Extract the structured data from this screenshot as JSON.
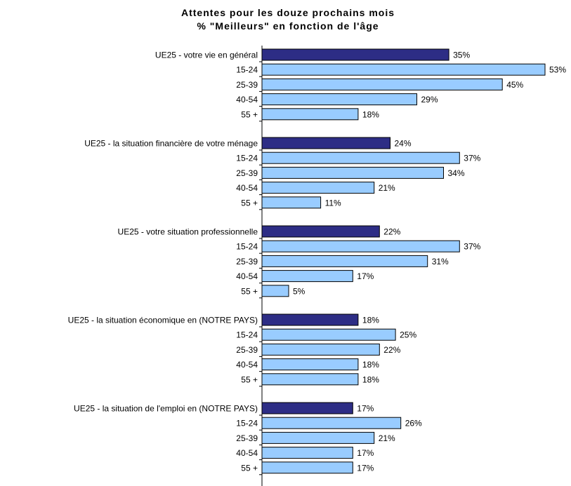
{
  "chart_data": {
    "type": "bar",
    "orientation": "horizontal",
    "title": [
      "Attentes pour les douze prochains mois",
      "% \"Meilleurs\" en fonction de l'âge"
    ],
    "xlim": [
      0,
      53
    ],
    "grid": false,
    "colors": {
      "total": "#2d2d85",
      "age": "#99ccff"
    },
    "groups": [
      {
        "bars": [
          {
            "label": "UE25 - votre vie en général",
            "value": 35,
            "display": "35%",
            "kind": "total"
          },
          {
            "label": "15-24",
            "value": 53,
            "display": "53%",
            "kind": "age"
          },
          {
            "label": "25-39",
            "value": 45,
            "display": "45%",
            "kind": "age"
          },
          {
            "label": "40-54",
            "value": 29,
            "display": "29%",
            "kind": "age"
          },
          {
            "label": "55 +",
            "value": 18,
            "display": "18%",
            "kind": "age"
          }
        ]
      },
      {
        "bars": [
          {
            "label": "UE25 - la situation financière de votre ménage",
            "value": 24,
            "display": "24%",
            "kind": "total"
          },
          {
            "label": "15-24",
            "value": 37,
            "display": "37%",
            "kind": "age"
          },
          {
            "label": "25-39",
            "value": 34,
            "display": "34%",
            "kind": "age"
          },
          {
            "label": "40-54",
            "value": 21,
            "display": "21%",
            "kind": "age"
          },
          {
            "label": "55 +",
            "value": 11,
            "display": "11%",
            "kind": "age"
          }
        ]
      },
      {
        "bars": [
          {
            "label": "UE25 - votre situation professionnelle",
            "value": 22,
            "display": "22%",
            "kind": "total"
          },
          {
            "label": "15-24",
            "value": 37,
            "display": "37%",
            "kind": "age"
          },
          {
            "label": "25-39",
            "value": 31,
            "display": "31%",
            "kind": "age"
          },
          {
            "label": "40-54",
            "value": 17,
            "display": "17%",
            "kind": "age"
          },
          {
            "label": "55 +",
            "value": 5,
            "display": "5%",
            "kind": "age"
          }
        ]
      },
      {
        "bars": [
          {
            "label": "UE25 - la situation économique en (NOTRE PAYS)",
            "value": 18,
            "display": "18%",
            "kind": "total"
          },
          {
            "label": "15-24",
            "value": 25,
            "display": "25%",
            "kind": "age"
          },
          {
            "label": "25-39",
            "value": 22,
            "display": "22%",
            "kind": "age"
          },
          {
            "label": "40-54",
            "value": 18,
            "display": "18%",
            "kind": "age"
          },
          {
            "label": "55 +",
            "value": 18,
            "display": "18%",
            "kind": "age"
          }
        ]
      },
      {
        "bars": [
          {
            "label": "UE25 - la situation de l'emploi en (NOTRE PAYS)",
            "value": 17,
            "display": "17%",
            "kind": "total"
          },
          {
            "label": "15-24",
            "value": 26,
            "display": "26%",
            "kind": "age"
          },
          {
            "label": "25-39",
            "value": 21,
            "display": "21%",
            "kind": "age"
          },
          {
            "label": "40-54",
            "value": 17,
            "display": "17%",
            "kind": "age"
          },
          {
            "label": "55 +",
            "value": 17,
            "display": "17%",
            "kind": "age"
          }
        ]
      }
    ]
  }
}
